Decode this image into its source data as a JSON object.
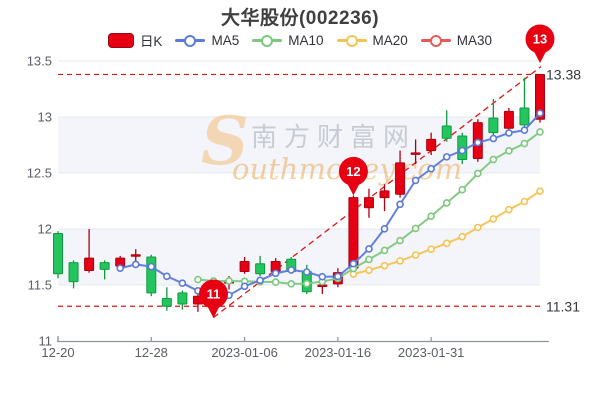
{
  "title": "大华股份(002236)",
  "legend": [
    {
      "label": "日K",
      "type": "candle",
      "color": "#e60013",
      "border": "#9d0310"
    },
    {
      "label": "MA5",
      "type": "line",
      "color": "#5b7ada"
    },
    {
      "label": "MA10",
      "type": "line",
      "color": "#7dc87d"
    },
    {
      "label": "MA20",
      "type": "line",
      "color": "#f5c254"
    },
    {
      "label": "MA30",
      "type": "line",
      "color": "#e85a5a"
    }
  ],
  "watermark": {
    "cn": "南方财富网",
    "en_initial": "S",
    "en_rest": "outhmoney.com"
  },
  "price_labels": {
    "high": "13.38",
    "low": "11.31"
  },
  "badges": [
    {
      "label": "11",
      "candle": 10,
      "anchor": "low"
    },
    {
      "label": "12",
      "candle": 19,
      "anchor": "high"
    },
    {
      "label": "13",
      "candle": 31,
      "anchor": "top"
    }
  ],
  "colors": {
    "up": "#e60013",
    "up_border": "#b00010",
    "down": "#22c55e",
    "down_border": "#129a3f",
    "dashed": "#e01515",
    "badge": "#e60012",
    "grid": "#e4e8f1",
    "band": "#f3f5fa",
    "axis": "#8f949c",
    "tick_text": "#5a5e66",
    "price_text": "#35383d"
  },
  "chart_data": {
    "type": "candlestick",
    "title": "大华股份(002236)",
    "y_ticks": [
      11,
      11.5,
      12,
      12.5,
      13,
      13.5
    ],
    "ylim": [
      11,
      13.5
    ],
    "x_ticks": [
      {
        "label": "12-20",
        "index": 0
      },
      {
        "label": "12-28",
        "index": 6
      },
      {
        "label": "2023-01-06",
        "index": 12
      },
      {
        "label": "2023-01-16",
        "index": 18
      },
      {
        "label": "2023-01-31",
        "index": 24
      }
    ],
    "ohlc_note": "arrays are [open, high, low, close]",
    "ohlc": [
      [
        11.96,
        11.98,
        11.56,
        11.6
      ],
      [
        11.7,
        11.72,
        11.47,
        11.53
      ],
      [
        11.63,
        12.0,
        11.61,
        11.74
      ],
      [
        11.7,
        11.72,
        11.55,
        11.64
      ],
      [
        11.67,
        11.76,
        11.65,
        11.74
      ],
      [
        11.76,
        11.82,
        11.7,
        11.77
      ],
      [
        11.75,
        11.77,
        11.4,
        11.43
      ],
      [
        11.38,
        11.48,
        11.27,
        11.31
      ],
      [
        11.43,
        11.45,
        11.28,
        11.33
      ],
      [
        11.33,
        11.42,
        11.26,
        11.4
      ],
      [
        11.4,
        11.5,
        11.21,
        11.47
      ],
      [
        11.52,
        11.58,
        11.46,
        11.53
      ],
      [
        11.62,
        11.75,
        11.6,
        11.71
      ],
      [
        11.69,
        11.76,
        11.58,
        11.6
      ],
      [
        11.62,
        11.74,
        11.6,
        11.71
      ],
      [
        11.73,
        11.75,
        11.6,
        11.62
      ],
      [
        11.62,
        11.68,
        11.42,
        11.44
      ],
      [
        11.49,
        11.56,
        11.42,
        11.5
      ],
      [
        11.51,
        11.65,
        11.48,
        11.61
      ],
      [
        11.65,
        12.3,
        11.63,
        12.28
      ],
      [
        12.19,
        12.36,
        12.1,
        12.28
      ],
      [
        12.28,
        12.4,
        12.16,
        12.34
      ],
      [
        12.31,
        12.7,
        12.28,
        12.59
      ],
      [
        12.67,
        12.8,
        12.58,
        12.68
      ],
      [
        12.7,
        12.86,
        12.66,
        12.8
      ],
      [
        12.92,
        13.06,
        12.78,
        12.81
      ],
      [
        12.83,
        12.86,
        12.58,
        12.62
      ],
      [
        12.63,
        12.98,
        12.6,
        12.95
      ],
      [
        12.99,
        13.16,
        12.83,
        12.86
      ],
      [
        12.9,
        13.08,
        12.85,
        13.05
      ],
      [
        13.08,
        13.35,
        12.9,
        12.93
      ],
      [
        12.98,
        13.38,
        12.95,
        13.38
      ]
    ],
    "moving_averages": [
      {
        "name": "MA5",
        "period": 5,
        "color": "#5b7ada",
        "visible": true
      },
      {
        "name": "MA10",
        "period": 10,
        "color": "#7dc87d",
        "visible": true
      },
      {
        "name": "MA20",
        "period": 20,
        "color": "#f5c254",
        "visible": true
      },
      {
        "name": "MA30",
        "period": 30,
        "color": "#e85a5a",
        "visible": false
      }
    ],
    "high_close_line": 13.38,
    "low_close_line": 11.31,
    "trend_line": {
      "from_candle": 10,
      "from_value": 11.21,
      "to_value": 13.45
    }
  }
}
